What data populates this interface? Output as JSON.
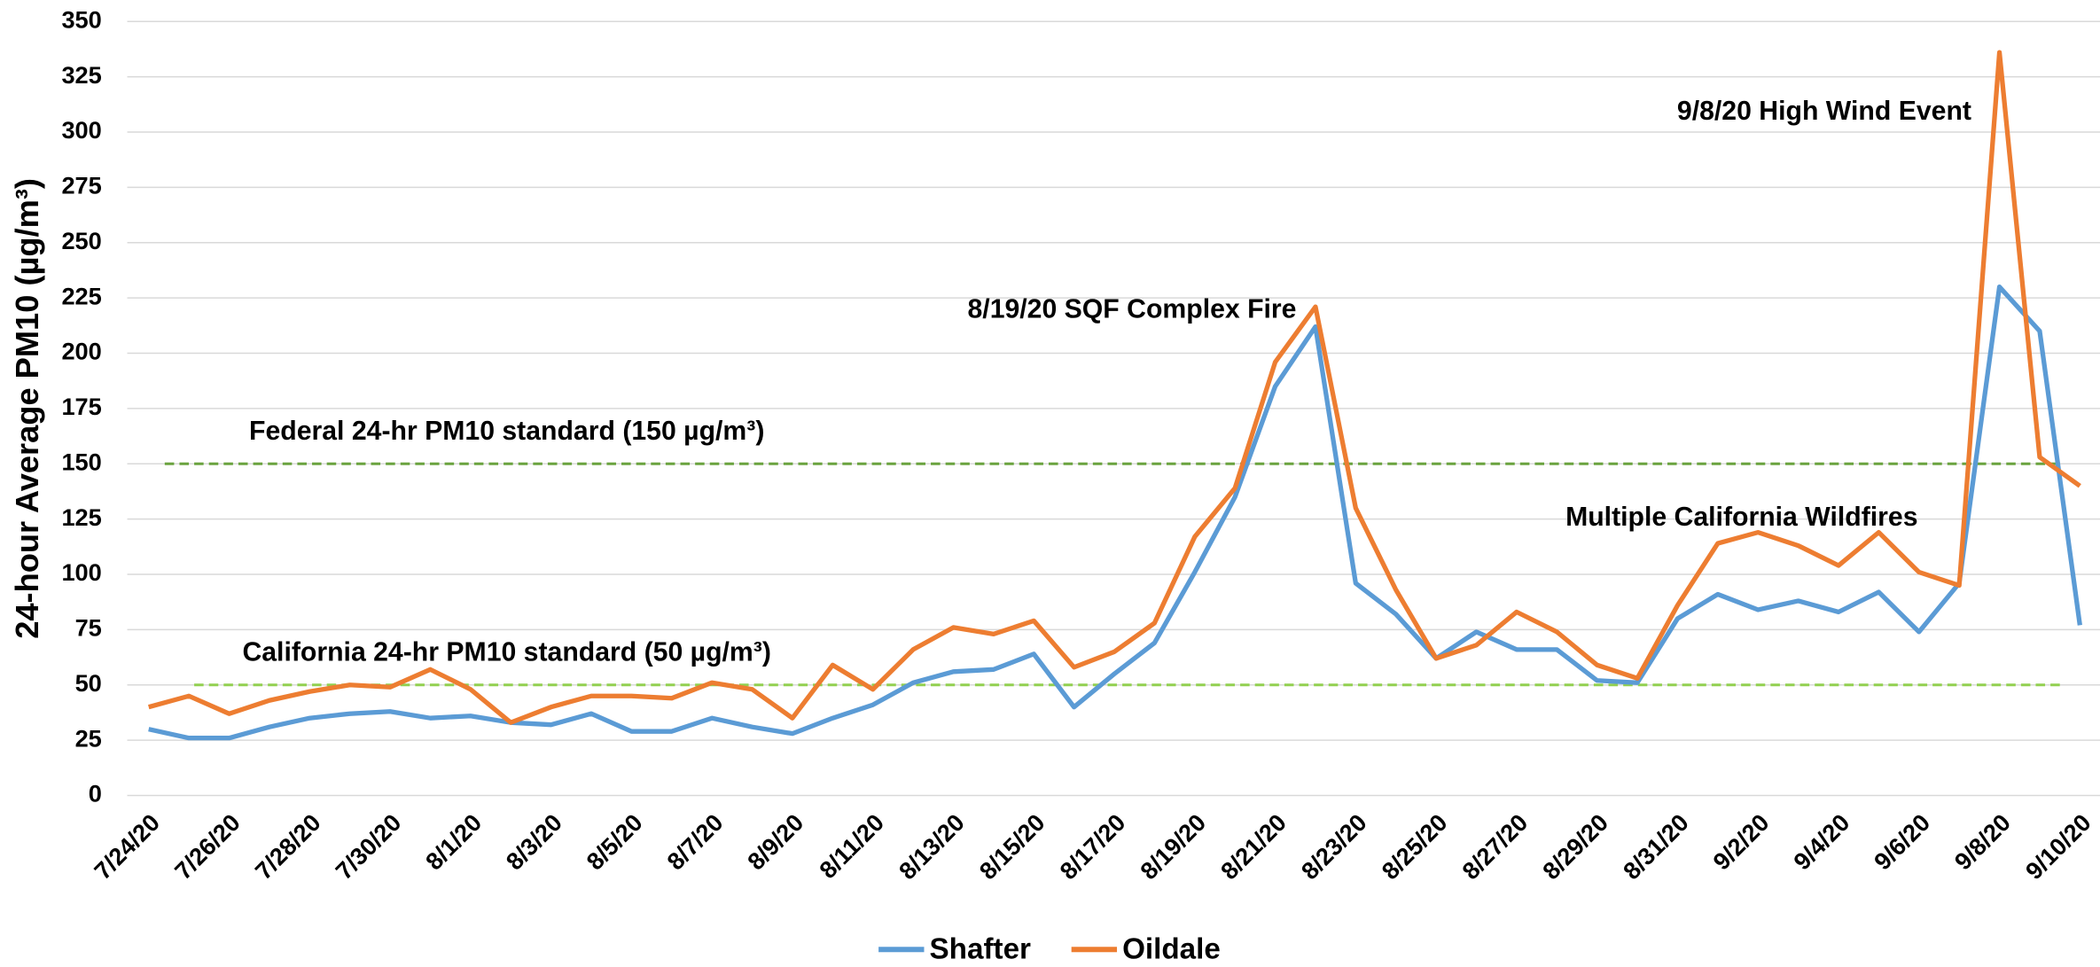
{
  "chart_data": {
    "type": "line",
    "y_label": "24-hour Average PM10 (µg/m³)",
    "categories": [
      "7/24/20",
      null,
      "7/26/20",
      null,
      "7/28/20",
      null,
      "7/30/20",
      null,
      "8/1/20",
      null,
      "8/3/20",
      null,
      "8/5/20",
      null,
      "8/7/20",
      null,
      "8/9/20",
      null,
      "8/11/20",
      null,
      "8/13/20",
      null,
      "8/15/20",
      null,
      "8/17/20",
      null,
      "8/19/20",
      null,
      "8/21/20",
      null,
      "8/23/20",
      null,
      "8/25/20",
      null,
      "8/27/20",
      null,
      "8/29/20",
      null,
      "8/31/20",
      null,
      "9/2/20",
      null,
      "9/4/20",
      null,
      "9/6/20",
      null,
      "9/8/20",
      null,
      "9/10/20"
    ],
    "series": [
      {
        "name": "Shafter",
        "color": "#5b9bd5",
        "values": [
          30,
          26,
          26,
          31,
          35,
          37,
          38,
          35,
          36,
          33,
          32,
          37,
          29,
          29,
          35,
          31,
          28,
          35,
          41,
          51,
          56,
          57,
          64,
          40,
          55,
          69,
          101,
          135,
          185,
          212,
          96,
          82,
          62,
          74,
          66,
          66,
          52,
          51,
          80,
          91,
          84,
          88,
          83,
          92,
          74,
          96,
          230,
          210,
          77
        ]
      },
      {
        "name": "Oildale",
        "color": "#ed7d31",
        "values": [
          40,
          45,
          37,
          43,
          47,
          50,
          49,
          57,
          48,
          33,
          40,
          45,
          45,
          44,
          51,
          48,
          35,
          59,
          48,
          66,
          76,
          73,
          79,
          58,
          65,
          78,
          117,
          139,
          196,
          221,
          130,
          93,
          62,
          68,
          83,
          74,
          59,
          53,
          86,
          114,
          119,
          113,
          104,
          119,
          101,
          95,
          336,
          153,
          140
        ]
      }
    ],
    "reference_lines": [
      {
        "label": "Federal 24-hr PM10 standard (150 µg/m³)",
        "value": 150,
        "color": "#6aa33f"
      },
      {
        "label": "California 24-hr PM10 standard (50 µg/m³)",
        "value": 50,
        "color": "#92d050",
        "label_color": "#a6a6a6"
      }
    ],
    "annotations": [
      "8/19/20 SQF Complex Fire",
      "9/8/20 High Wind Event",
      "Multiple California Wildfires"
    ],
    "ylim": [
      0,
      350
    ],
    "yticks": [
      0,
      25,
      50,
      75,
      100,
      125,
      150,
      175,
      200,
      225,
      250,
      275,
      300,
      325,
      350
    ],
    "grid": true,
    "legend": "bottom"
  }
}
